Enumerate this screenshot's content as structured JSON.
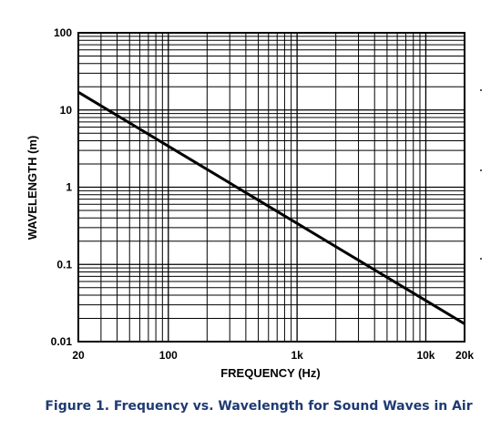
{
  "chart_data": {
    "type": "line",
    "title": "",
    "xlabel": "FREQUENCY (Hz)",
    "ylabel": "WAVELENGTH (m)",
    "x_scale": "log",
    "y_scale": "log",
    "xlim": [
      20,
      20000
    ],
    "ylim": [
      0.01,
      100
    ],
    "x_tick_labels": [
      {
        "value": 20,
        "label": "20"
      },
      {
        "value": 100,
        "label": "100"
      },
      {
        "value": 1000,
        "label": "1k"
      },
      {
        "value": 10000,
        "label": "10k"
      },
      {
        "value": 20000,
        "label": "20k"
      }
    ],
    "y_tick_labels": [
      {
        "value": 0.01,
        "label": "0.01"
      },
      {
        "value": 0.1,
        "label": "0.1"
      },
      {
        "value": 1,
        "label": "1"
      },
      {
        "value": 10,
        "label": "10"
      },
      {
        "value": 100,
        "label": "100"
      }
    ],
    "grid": true,
    "legend": "none",
    "series": [
      {
        "x": [
          20,
          100,
          1000,
          10000,
          20000
        ],
        "y": [
          17,
          3.4,
          0.34,
          0.034,
          0.017
        ],
        "color": "#000000"
      }
    ]
  },
  "caption": "Figure 1. Frequency vs. Wavelength for Sound Waves in Air"
}
